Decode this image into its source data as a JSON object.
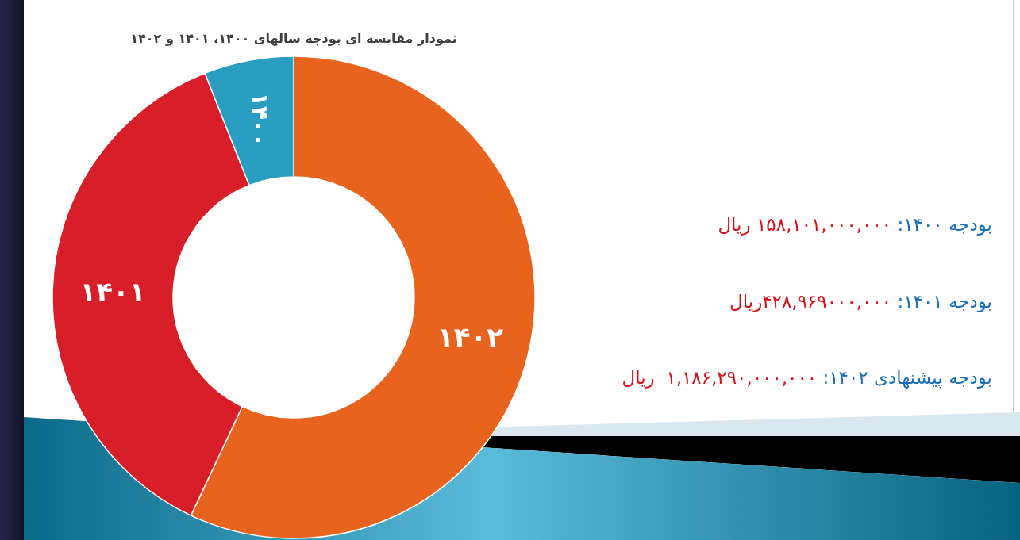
{
  "chart_data": {
    "type": "donut",
    "title": "نمودار مقایسه ای بودجه سالهای ۱۴۰۰، ۱۴۰۱ و ۱۴۰۲",
    "categories": [
      "۱۴۰۲",
      "۱۴۰۱",
      "۱۴۰۰"
    ],
    "values": [
      57,
      37,
      6
    ],
    "colors": [
      "#e8641e",
      "#d81e29",
      "#2a9ec0"
    ],
    "annotations": [
      "بودجه ۱۴۰۰:",
      "۱۵۸,۱۰۱,۰۰۰,۰۰۰ ریال",
      "بودجه ۱۴۰۱:",
      "۴۲۸,۹۶۹۰۰۰,۰۰۰ریال",
      "بودجه پیشنهادی ۱۴۰۲:",
      "۱,۱۸۶,۲۹۰,۰۰۰,۰۰۰  ریال"
    ]
  }
}
